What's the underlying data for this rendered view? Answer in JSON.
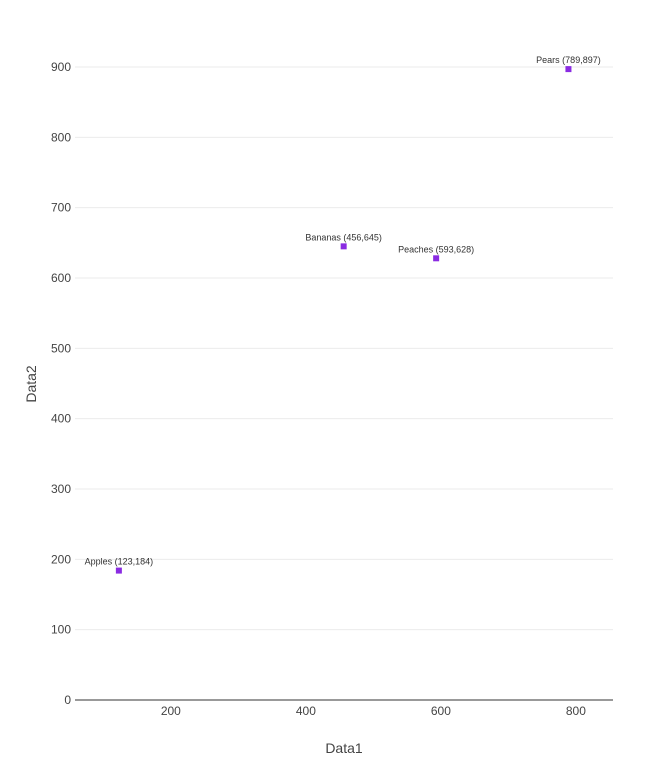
{
  "chart_data": {
    "type": "scatter",
    "title": "",
    "xlabel": "Data1",
    "ylabel": "Data2",
    "xlim": [
      58,
      855
    ],
    "ylim": [
      0,
      900
    ],
    "xticks": [
      200,
      400,
      600,
      800
    ],
    "yticks": [
      0,
      100,
      200,
      300,
      400,
      500,
      600,
      700,
      800,
      900
    ],
    "grid": "horizontal",
    "marker_color": "#8a2be2",
    "points": [
      {
        "label": "Apples (123,184)",
        "x": 123,
        "y": 184
      },
      {
        "label": "Bananas (456,645)",
        "x": 456,
        "y": 645
      },
      {
        "label": "Peaches (593,628)",
        "x": 593,
        "y": 628
      },
      {
        "label": "Pears (789,897)",
        "x": 789,
        "y": 897
      }
    ]
  }
}
